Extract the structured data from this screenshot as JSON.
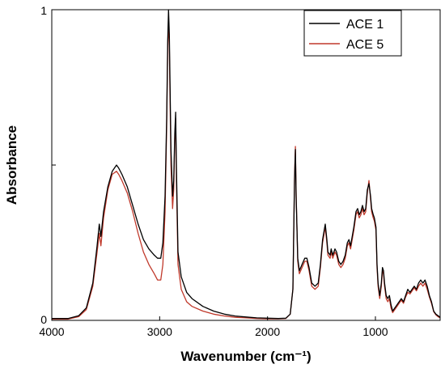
{
  "chart_data": {
    "type": "line",
    "title": "",
    "xlabel": "Wavenumber (cm⁻¹)",
    "ylabel": "Absorbance",
    "xlim": [
      4000,
      400
    ],
    "ylim": [
      0,
      1
    ],
    "x_ticks": [
      4000,
      3000,
      2000,
      1000
    ],
    "x_tick_labels": [
      "4000",
      "3000",
      "2000",
      "1000"
    ],
    "y_ticks": [
      0,
      0.5,
      1
    ],
    "y_tick_labels": [
      "0",
      "",
      "1"
    ],
    "grid": false,
    "legend_position": "top-right",
    "series": [
      {
        "name": "ACE 1",
        "color": "#000000",
        "points": [
          [
            4000,
            0.006
          ],
          [
            3850,
            0.006
          ],
          [
            3750,
            0.015
          ],
          [
            3680,
            0.04
          ],
          [
            3620,
            0.12
          ],
          [
            3580,
            0.24
          ],
          [
            3560,
            0.31
          ],
          [
            3545,
            0.27
          ],
          [
            3520,
            0.35
          ],
          [
            3480,
            0.43
          ],
          [
            3440,
            0.48
          ],
          [
            3400,
            0.5
          ],
          [
            3380,
            0.49
          ],
          [
            3350,
            0.47
          ],
          [
            3300,
            0.43
          ],
          [
            3250,
            0.37
          ],
          [
            3200,
            0.31
          ],
          [
            3150,
            0.26
          ],
          [
            3100,
            0.23
          ],
          [
            3050,
            0.21
          ],
          [
            3020,
            0.2
          ],
          [
            2990,
            0.2
          ],
          [
            2970,
            0.25
          ],
          [
            2950,
            0.4
          ],
          [
            2935,
            0.65
          ],
          [
            2925,
            0.9
          ],
          [
            2918,
            1.0
          ],
          [
            2910,
            0.92
          ],
          [
            2895,
            0.55
          ],
          [
            2880,
            0.4
          ],
          [
            2870,
            0.45
          ],
          [
            2860,
            0.6
          ],
          [
            2852,
            0.67
          ],
          [
            2845,
            0.5
          ],
          [
            2830,
            0.22
          ],
          [
            2800,
            0.14
          ],
          [
            2750,
            0.09
          ],
          [
            2700,
            0.07
          ],
          [
            2600,
            0.045
          ],
          [
            2500,
            0.03
          ],
          [
            2400,
            0.02
          ],
          [
            2300,
            0.014
          ],
          [
            2200,
            0.011
          ],
          [
            2100,
            0.008
          ],
          [
            2000,
            0.007
          ],
          [
            1900,
            0.006
          ],
          [
            1830,
            0.007
          ],
          [
            1790,
            0.02
          ],
          [
            1765,
            0.1
          ],
          [
            1750,
            0.45
          ],
          [
            1742,
            0.55
          ],
          [
            1735,
            0.4
          ],
          [
            1720,
            0.2
          ],
          [
            1705,
            0.16
          ],
          [
            1680,
            0.18
          ],
          [
            1655,
            0.2
          ],
          [
            1635,
            0.2
          ],
          [
            1615,
            0.17
          ],
          [
            1590,
            0.12
          ],
          [
            1560,
            0.11
          ],
          [
            1530,
            0.12
          ],
          [
            1510,
            0.18
          ],
          [
            1490,
            0.26
          ],
          [
            1465,
            0.31
          ],
          [
            1450,
            0.26
          ],
          [
            1440,
            0.22
          ],
          [
            1420,
            0.21
          ],
          [
            1410,
            0.23
          ],
          [
            1395,
            0.21
          ],
          [
            1375,
            0.23
          ],
          [
            1360,
            0.22
          ],
          [
            1340,
            0.19
          ],
          [
            1320,
            0.18
          ],
          [
            1300,
            0.19
          ],
          [
            1280,
            0.21
          ],
          [
            1260,
            0.25
          ],
          [
            1245,
            0.26
          ],
          [
            1230,
            0.24
          ],
          [
            1215,
            0.27
          ],
          [
            1200,
            0.3
          ],
          [
            1180,
            0.35
          ],
          [
            1165,
            0.36
          ],
          [
            1150,
            0.34
          ],
          [
            1135,
            0.35
          ],
          [
            1120,
            0.37
          ],
          [
            1105,
            0.35
          ],
          [
            1090,
            0.36
          ],
          [
            1075,
            0.42
          ],
          [
            1060,
            0.44
          ],
          [
            1045,
            0.4
          ],
          [
            1035,
            0.36
          ],
          [
            1020,
            0.34
          ],
          [
            1010,
            0.33
          ],
          [
            995,
            0.3
          ],
          [
            985,
            0.18
          ],
          [
            975,
            0.12
          ],
          [
            960,
            0.08
          ],
          [
            945,
            0.12
          ],
          [
            935,
            0.17
          ],
          [
            925,
            0.16
          ],
          [
            915,
            0.12
          ],
          [
            900,
            0.08
          ],
          [
            885,
            0.07
          ],
          [
            870,
            0.08
          ],
          [
            855,
            0.05
          ],
          [
            840,
            0.03
          ],
          [
            820,
            0.04
          ],
          [
            800,
            0.05
          ],
          [
            780,
            0.06
          ],
          [
            760,
            0.07
          ],
          [
            740,
            0.06
          ],
          [
            720,
            0.08
          ],
          [
            700,
            0.1
          ],
          [
            680,
            0.09
          ],
          [
            660,
            0.1
          ],
          [
            640,
            0.11
          ],
          [
            620,
            0.1
          ],
          [
            600,
            0.12
          ],
          [
            580,
            0.13
          ],
          [
            560,
            0.12
          ],
          [
            540,
            0.13
          ],
          [
            520,
            0.11
          ],
          [
            500,
            0.08
          ],
          [
            480,
            0.06
          ],
          [
            460,
            0.03
          ],
          [
            440,
            0.02
          ],
          [
            420,
            0.015
          ],
          [
            400,
            0.01
          ]
        ]
      },
      {
        "name": "ACE 5",
        "color": "#c0392b",
        "points": [
          [
            4000,
            0.004
          ],
          [
            3850,
            0.004
          ],
          [
            3750,
            0.012
          ],
          [
            3680,
            0.035
          ],
          [
            3620,
            0.11
          ],
          [
            3580,
            0.22
          ],
          [
            3560,
            0.28
          ],
          [
            3545,
            0.24
          ],
          [
            3520,
            0.33
          ],
          [
            3480,
            0.42
          ],
          [
            3440,
            0.47
          ],
          [
            3400,
            0.48
          ],
          [
            3380,
            0.47
          ],
          [
            3350,
            0.45
          ],
          [
            3300,
            0.41
          ],
          [
            3250,
            0.35
          ],
          [
            3200,
            0.28
          ],
          [
            3150,
            0.22
          ],
          [
            3100,
            0.18
          ],
          [
            3050,
            0.15
          ],
          [
            3020,
            0.13
          ],
          [
            2990,
            0.13
          ],
          [
            2970,
            0.18
          ],
          [
            2950,
            0.35
          ],
          [
            2935,
            0.62
          ],
          [
            2925,
            0.88
          ],
          [
            2918,
            0.97
          ],
          [
            2910,
            0.88
          ],
          [
            2895,
            0.5
          ],
          [
            2880,
            0.36
          ],
          [
            2870,
            0.42
          ],
          [
            2860,
            0.58
          ],
          [
            2852,
            0.65
          ],
          [
            2845,
            0.46
          ],
          [
            2830,
            0.18
          ],
          [
            2800,
            0.1
          ],
          [
            2750,
            0.06
          ],
          [
            2700,
            0.045
          ],
          [
            2600,
            0.03
          ],
          [
            2500,
            0.02
          ],
          [
            2400,
            0.014
          ],
          [
            2300,
            0.01
          ],
          [
            2200,
            0.008
          ],
          [
            2100,
            0.006
          ],
          [
            2000,
            0.005
          ],
          [
            1900,
            0.005
          ],
          [
            1830,
            0.006
          ],
          [
            1790,
            0.02
          ],
          [
            1765,
            0.1
          ],
          [
            1750,
            0.46
          ],
          [
            1742,
            0.56
          ],
          [
            1735,
            0.41
          ],
          [
            1720,
            0.19
          ],
          [
            1705,
            0.15
          ],
          [
            1680,
            0.17
          ],
          [
            1655,
            0.19
          ],
          [
            1635,
            0.19
          ],
          [
            1615,
            0.16
          ],
          [
            1590,
            0.11
          ],
          [
            1560,
            0.1
          ],
          [
            1530,
            0.11
          ],
          [
            1510,
            0.17
          ],
          [
            1490,
            0.25
          ],
          [
            1465,
            0.3
          ],
          [
            1450,
            0.25
          ],
          [
            1440,
            0.21
          ],
          [
            1420,
            0.2
          ],
          [
            1410,
            0.22
          ],
          [
            1395,
            0.2
          ],
          [
            1375,
            0.22
          ],
          [
            1360,
            0.21
          ],
          [
            1340,
            0.18
          ],
          [
            1320,
            0.17
          ],
          [
            1300,
            0.18
          ],
          [
            1280,
            0.2
          ],
          [
            1260,
            0.24
          ],
          [
            1245,
            0.25
          ],
          [
            1230,
            0.23
          ],
          [
            1215,
            0.26
          ],
          [
            1200,
            0.29
          ],
          [
            1180,
            0.34
          ],
          [
            1165,
            0.35
          ],
          [
            1150,
            0.33
          ],
          [
            1135,
            0.34
          ],
          [
            1120,
            0.36
          ],
          [
            1105,
            0.34
          ],
          [
            1090,
            0.35
          ],
          [
            1075,
            0.41
          ],
          [
            1060,
            0.45
          ],
          [
            1045,
            0.39
          ],
          [
            1035,
            0.35
          ],
          [
            1020,
            0.33
          ],
          [
            1010,
            0.32
          ],
          [
            995,
            0.29
          ],
          [
            985,
            0.17
          ],
          [
            975,
            0.11
          ],
          [
            960,
            0.07
          ],
          [
            945,
            0.11
          ],
          [
            935,
            0.16
          ],
          [
            925,
            0.15
          ],
          [
            915,
            0.11
          ],
          [
            900,
            0.07
          ],
          [
            885,
            0.06
          ],
          [
            870,
            0.07
          ],
          [
            855,
            0.04
          ],
          [
            840,
            0.025
          ],
          [
            820,
            0.035
          ],
          [
            800,
            0.045
          ],
          [
            780,
            0.055
          ],
          [
            760,
            0.065
          ],
          [
            740,
            0.055
          ],
          [
            720,
            0.075
          ],
          [
            700,
            0.09
          ],
          [
            680,
            0.085
          ],
          [
            660,
            0.095
          ],
          [
            640,
            0.105
          ],
          [
            620,
            0.095
          ],
          [
            600,
            0.11
          ],
          [
            580,
            0.12
          ],
          [
            560,
            0.11
          ],
          [
            540,
            0.12
          ],
          [
            520,
            0.1
          ],
          [
            500,
            0.075
          ],
          [
            480,
            0.055
          ],
          [
            460,
            0.028
          ],
          [
            440,
            0.018
          ],
          [
            420,
            0.012
          ],
          [
            400,
            0.008
          ]
        ]
      }
    ]
  }
}
